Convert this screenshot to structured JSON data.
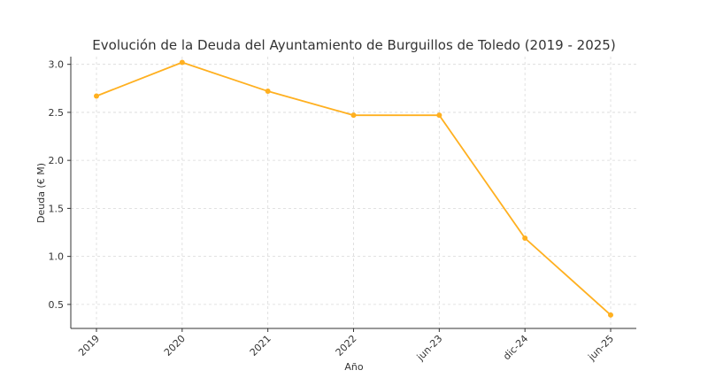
{
  "chart_data": {
    "type": "line",
    "title": "Evolución de la Deuda del Ayuntamiento de Burguillos de Toledo (2019 - 2025)",
    "xlabel": "Año",
    "ylabel": "Deuda (€ M)",
    "categories": [
      "2019",
      "2020",
      "2021",
      "2022",
      "jun-23",
      "dic-24",
      "jun-25"
    ],
    "series": [
      {
        "values": [
          2.67,
          3.02,
          2.72,
          2.47,
          2.47,
          1.19,
          0.39
        ]
      }
    ],
    "ylim": [
      0.25,
      3.08
    ],
    "yticks": [
      "0.5",
      "1.0",
      "1.5",
      "2.0",
      "2.5",
      "3.0"
    ],
    "grid": true,
    "color": "#FFB020"
  }
}
